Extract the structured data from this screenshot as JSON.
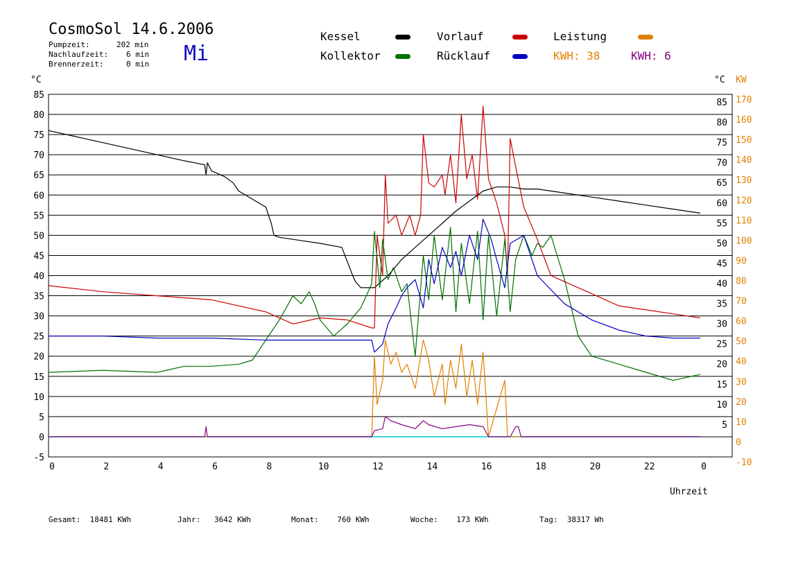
{
  "header": {
    "title": "CosmoSol 14.6.2006",
    "day": "Mi",
    "info": [
      {
        "label": "Pumpzeit:",
        "value": "202 min"
      },
      {
        "label": "Nachlaufzeit:",
        "value": "6 min"
      },
      {
        "label": "Brennerzeit:",
        "value": "0 min"
      }
    ]
  },
  "legend": {
    "kessel": "Kessel",
    "vorlauf": "Vorlauf",
    "leistung": "Leistung",
    "kollektor": "Kollektor",
    "ruecklauf": "Rücklauf",
    "kwh1": "KWH: 38",
    "kwh2": "KWH: 6"
  },
  "units": {
    "left": "°C",
    "right_c": "°C",
    "right_kw": "KW",
    "xlabel": "Uhrzeit"
  },
  "footer": {
    "gesamt": "Gesamt:  18481 KWh",
    "jahr": "Jahr:   3642 KWh",
    "monat": "Monat:    760 KWh",
    "woche": "Woche:    173 KWh",
    "tag": "Tag:  38317 Wh"
  },
  "colors": {
    "kessel": "#000000",
    "vorlauf": "#cc0000",
    "leistung": "#e08000",
    "kollektor": "#007000",
    "ruecklauf": "#0000c0",
    "kwh2": "#800080",
    "zero": "#00c8c8"
  },
  "chart_data": {
    "type": "line",
    "ylim": [
      -5,
      85
    ],
    "y2lim": [
      -10,
      170
    ],
    "xlim": [
      0,
      24
    ],
    "x_ticks": [
      "0",
      "2",
      "4",
      "6",
      "8",
      "10",
      "12",
      "14",
      "16",
      "18",
      "20",
      "22",
      "0"
    ],
    "y_ticks": [
      "85",
      "80",
      "75",
      "70",
      "65",
      "60",
      "55",
      "50",
      "45",
      "40",
      "35",
      "30",
      "25",
      "20",
      "15",
      "10",
      "5",
      "0",
      "-5"
    ],
    "y_right_ticks": [
      "85",
      "80",
      "75",
      "70",
      "65",
      "60",
      "55",
      "50",
      "45",
      "40",
      "35",
      "30",
      "25",
      "20",
      "15",
      "10",
      "5"
    ],
    "y2_ticks": [
      "170",
      "160",
      "150",
      "140",
      "130",
      "120",
      "110",
      "100",
      "90",
      "80",
      "70",
      "60",
      "50",
      "40",
      "30",
      "20",
      "10",
      "0",
      "-10"
    ],
    "series": [
      {
        "name": "Kessel",
        "key": "kessel",
        "x": [
          0,
          1,
          2,
          3,
          4,
          5,
          5.75,
          5.8,
          5.85,
          6,
          6.5,
          6.8,
          7,
          7.5,
          8,
          8.2,
          8.3,
          8.5,
          9,
          10,
          10.8,
          11,
          11.2,
          11.3,
          11.5,
          12,
          12.5,
          13,
          13.5,
          14,
          14.5,
          15,
          15.5,
          16,
          16.5,
          17,
          17.5,
          18,
          19,
          20,
          21,
          22,
          23,
          24
        ],
        "y": [
          76,
          74.5,
          73,
          71.5,
          70,
          68.5,
          67.5,
          65,
          68,
          66,
          64.5,
          63,
          61,
          59,
          57,
          53,
          50,
          49.5,
          49,
          48,
          47,
          43.5,
          40,
          38.5,
          37,
          37,
          40,
          44,
          47,
          50,
          53,
          56,
          58.5,
          61,
          62,
          62,
          61.5,
          61.5,
          60.5,
          59.5,
          58.5,
          57.5,
          56.5,
          55.5
        ]
      },
      {
        "name": "Vorlauf",
        "key": "vorlauf",
        "x": [
          0,
          2,
          4,
          6,
          8,
          9,
          10,
          11,
          11.9,
          12,
          12.1,
          12.3,
          12.4,
          12.5,
          12.8,
          13,
          13.3,
          13.5,
          13.7,
          13.8,
          14,
          14.2,
          14.5,
          14.6,
          14.8,
          15,
          15.2,
          15.4,
          15.6,
          15.8,
          16,
          16.2,
          16.5,
          16.8,
          16.9,
          17,
          17.2,
          17.5,
          18,
          18.5,
          19,
          20,
          21,
          22,
          23,
          24
        ],
        "y": [
          37.5,
          36,
          35,
          34,
          31,
          28,
          29.5,
          29,
          27,
          27,
          50,
          40,
          65,
          53,
          55,
          50,
          55,
          50,
          55,
          75,
          63,
          62,
          65,
          60,
          70,
          58,
          80,
          64,
          70,
          59,
          82,
          64,
          58,
          50,
          40,
          74,
          67,
          57,
          49,
          40,
          38.5,
          35.5,
          32.5,
          31.5,
          30.5,
          29.5
        ]
      },
      {
        "name": "Kollektor",
        "key": "kollektor",
        "x": [
          0,
          2,
          4,
          5,
          6,
          7,
          7.5,
          8,
          8.5,
          9,
          9.3,
          9.6,
          9.8,
          10,
          10.5,
          11,
          11.5,
          11.9,
          12,
          12.2,
          12.3,
          12.5,
          12.7,
          13,
          13.2,
          13.5,
          13.8,
          14,
          14.2,
          14.5,
          14.8,
          15,
          15.2,
          15.5,
          15.8,
          16,
          16.2,
          16.5,
          16.8,
          17,
          17.2,
          17.5,
          17.8,
          18,
          18.2,
          18.5,
          19,
          19.5,
          20,
          21,
          22,
          23,
          24
        ],
        "y": [
          16,
          16.5,
          16,
          17.5,
          17.5,
          18,
          19,
          24,
          29,
          35,
          33,
          36,
          33,
          29,
          25,
          28,
          32,
          38,
          51,
          37,
          49,
          39,
          42,
          36,
          38,
          20,
          45,
          34,
          50,
          34,
          52,
          31,
          48,
          33,
          51,
          29,
          50,
          30,
          49,
          31,
          44,
          50,
          45,
          48,
          47,
          50,
          39,
          25,
          20,
          18,
          16,
          14,
          15.5
        ]
      },
      {
        "name": "Rücklauf",
        "key": "ruecklauf",
        "x": [
          0,
          2,
          4,
          6,
          8,
          10,
          11.9,
          12,
          12.3,
          12.5,
          12.8,
          13,
          13.2,
          13.5,
          13.8,
          14,
          14.2,
          14.5,
          14.8,
          15,
          15.2,
          15.5,
          15.8,
          16,
          16.3,
          16.5,
          16.8,
          17,
          17.5,
          18,
          19,
          20,
          21,
          22,
          23,
          24
        ],
        "y": [
          25,
          25,
          24.5,
          24.5,
          24,
          24,
          24,
          21,
          23,
          28,
          32,
          35,
          37,
          39,
          32,
          44,
          38,
          47,
          42,
          46,
          40,
          50,
          44,
          54,
          49,
          44,
          37,
          48,
          50,
          40,
          33,
          29,
          26.5,
          25,
          24.5,
          24.5
        ]
      },
      {
        "name": "Leistung",
        "key": "leistung",
        "x": [
          0,
          11.9,
          12,
          12.1,
          12.3,
          12.4,
          12.6,
          12.8,
          13,
          13.2,
          13.5,
          13.7,
          13.8,
          14,
          14.2,
          14.5,
          14.6,
          14.8,
          15,
          15.2,
          15.4,
          15.6,
          15.8,
          16,
          16.2,
          16.8,
          16.9,
          17,
          24
        ],
        "y": [
          0,
          0,
          20,
          8,
          14,
          24,
          18,
          21,
          16,
          18,
          12,
          20,
          24,
          19,
          10,
          18,
          8,
          19,
          12,
          23,
          10,
          19,
          8,
          21,
          0,
          14,
          0,
          0,
          0
        ]
      },
      {
        "name": "KWH: 6",
        "key": "kwh2",
        "x": [
          0,
          5.75,
          5.8,
          5.85,
          6,
          11.9,
          12,
          12.3,
          12.4,
          12.6,
          13,
          13.5,
          13.8,
          14,
          14.5,
          15,
          15.5,
          16,
          16.2,
          17,
          17.2,
          17.3,
          17.4,
          24
        ],
        "y": [
          0,
          0,
          2.5,
          0,
          0,
          0,
          1.5,
          2,
          5,
          4,
          3,
          2,
          4,
          3,
          2,
          2.5,
          3,
          2.5,
          0,
          0,
          2.5,
          2.5,
          0,
          0
        ]
      }
    ]
  }
}
